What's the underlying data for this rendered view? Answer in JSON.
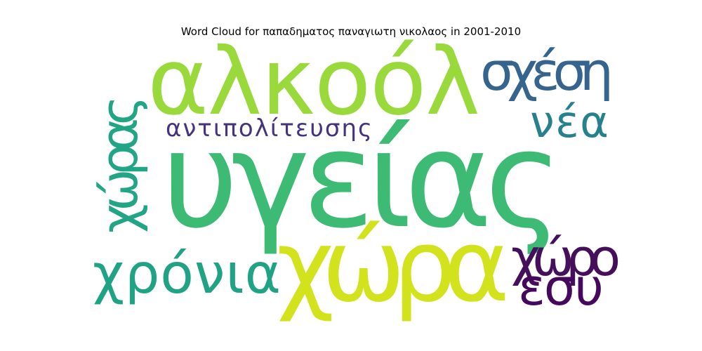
{
  "chart_data": {
    "type": "wordcloud",
    "title": "Word Cloud for παπαδηματος παναγιωτη νικολαος in 2001-2010",
    "words": [
      {
        "text": "υγείας",
        "color": "#3dbb75"
      },
      {
        "text": "αλκοόλ",
        "color": "#9ad93b"
      },
      {
        "text": "χώρα",
        "color": "#d2e21c"
      },
      {
        "text": "σχέση",
        "color": "#35648e"
      },
      {
        "text": "νέα",
        "color": "#26818e"
      },
      {
        "text": "αντιπολίτευσης",
        "color": "#46337e"
      },
      {
        "text": "χώρας",
        "color": "#21a585"
      },
      {
        "text": "χρόνια",
        "color": "#20a384"
      },
      {
        "text": "χώρο",
        "color": "#450f5c"
      },
      {
        "text": "εσυ",
        "color": "#46085c"
      }
    ]
  }
}
